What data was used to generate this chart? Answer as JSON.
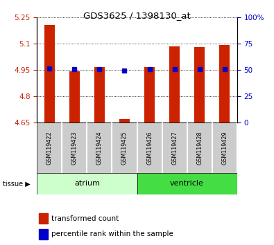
{
  "title": "GDS3625 / 1398130_at",
  "samples": [
    "GSM119422",
    "GSM119423",
    "GSM119424",
    "GSM119425",
    "GSM119426",
    "GSM119427",
    "GSM119428",
    "GSM119429"
  ],
  "red_values": [
    5.205,
    4.94,
    4.967,
    4.67,
    4.965,
    5.085,
    5.08,
    5.09
  ],
  "blue_values": [
    4.957,
    4.952,
    4.954,
    4.947,
    4.954,
    4.954,
    4.953,
    4.954
  ],
  "ylim_left": [
    4.65,
    5.25
  ],
  "ylim_right": [
    0,
    100
  ],
  "yticks_left": [
    4.65,
    4.8,
    4.95,
    5.1,
    5.25
  ],
  "yticks_right": [
    0,
    25,
    50,
    75,
    100
  ],
  "tissue_groups": [
    {
      "label": "atrium",
      "start": 0,
      "end": 3,
      "color": "#ccffcc"
    },
    {
      "label": "ventricle",
      "start": 4,
      "end": 7,
      "color": "#44dd44"
    }
  ],
  "bar_color": "#cc2200",
  "blue_color": "#0000cc",
  "axis_left_color": "#cc2200",
  "axis_right_color": "#0000cc",
  "bg_plot": "#ffffff",
  "bg_sample_row": "#cccccc",
  "legend_red_label": "transformed count",
  "legend_blue_label": "percentile rank within the sample",
  "tissue_label": "tissue ▶",
  "bar_width": 0.4
}
